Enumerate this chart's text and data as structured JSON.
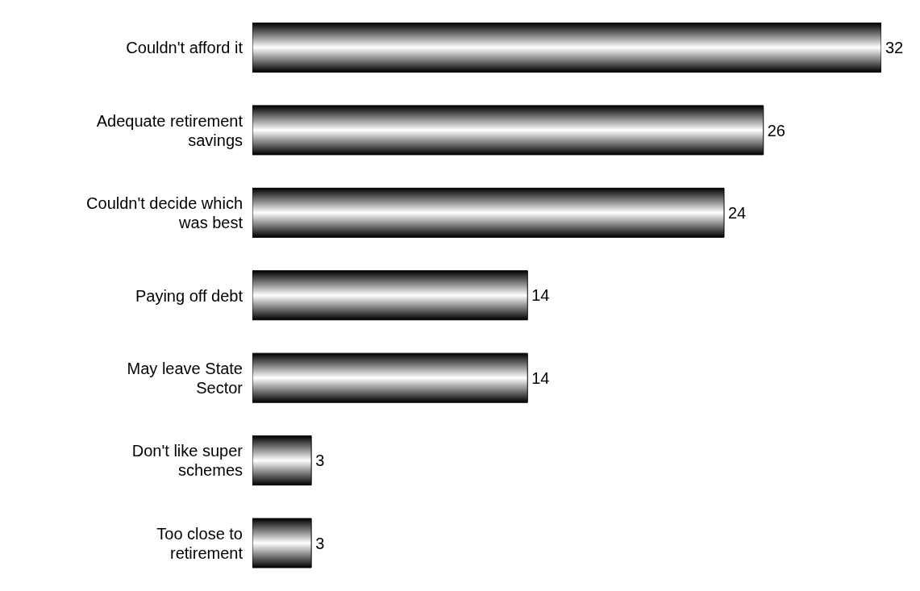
{
  "chart_data": {
    "type": "bar",
    "orientation": "horizontal",
    "categories": [
      "Couldn't afford it",
      "Adequate retirement savings",
      "Couldn't decide which was best",
      "Paying off debt",
      "May leave State Sector",
      "Don't like super schemes",
      "Too close to retirement"
    ],
    "values": [
      32,
      26,
      24,
      14,
      14,
      3,
      3
    ],
    "color": "#000000",
    "data_labels": true,
    "tick_labels": "y",
    "grid": false,
    "legend": false
  }
}
